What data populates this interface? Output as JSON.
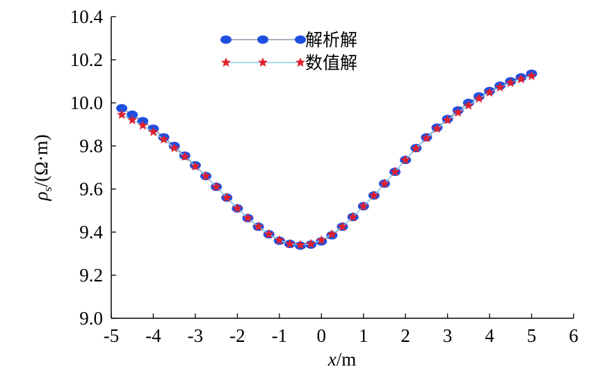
{
  "chart_data": {
    "type": "line",
    "title": "",
    "xlabel": "x/m",
    "ylabel": "ρs/(Ω·m)",
    "xlim": [
      -5,
      6
    ],
    "ylim": [
      9.0,
      10.4
    ],
    "x_ticks": [
      -5,
      -4,
      -3,
      -2,
      -1,
      0,
      1,
      2,
      3,
      4,
      5,
      6
    ],
    "x_tick_labels": [
      "-5",
      "-4",
      "-3",
      "-2",
      "-1",
      "0",
      "1",
      "2",
      "3",
      "4",
      "5",
      "6"
    ],
    "y_ticks": [
      9.0,
      9.2,
      9.4,
      9.6,
      9.8,
      10.0,
      10.2,
      10.4
    ],
    "y_tick_labels": [
      "9.0",
      "9.2",
      "9.4",
      "9.6",
      "9.8",
      "10.0",
      "10.2",
      "10.4"
    ],
    "grid": false,
    "legend_position": "top-center",
    "x": [
      -4.75,
      -4.5,
      -4.25,
      -4.0,
      -3.75,
      -3.5,
      -3.25,
      -3.0,
      -2.75,
      -2.5,
      -2.25,
      -2.0,
      -1.75,
      -1.5,
      -1.25,
      -1.0,
      -0.75,
      -0.5,
      -0.25,
      0.0,
      0.25,
      0.5,
      0.75,
      1.0,
      1.25,
      1.5,
      1.75,
      2.0,
      2.25,
      2.5,
      2.75,
      3.0,
      3.25,
      3.5,
      3.75,
      4.0,
      4.25,
      4.5,
      4.75,
      5.0
    ],
    "series": [
      {
        "name": "解析解",
        "marker": "circle",
        "color": "#1f4fe0",
        "line_color": "#8a9aa8",
        "values": [
          9.975,
          9.945,
          9.915,
          9.88,
          9.84,
          9.8,
          9.755,
          9.71,
          9.66,
          9.61,
          9.56,
          9.51,
          9.465,
          9.425,
          9.39,
          9.36,
          9.345,
          9.337,
          9.342,
          9.357,
          9.385,
          9.425,
          9.47,
          9.52,
          9.57,
          9.625,
          9.68,
          9.735,
          9.79,
          9.84,
          9.885,
          9.925,
          9.965,
          10.0,
          10.03,
          10.055,
          10.08,
          10.1,
          10.118,
          10.135
        ]
      },
      {
        "name": "数值解",
        "marker": "star",
        "color": "#e0202e",
        "line_color": "#8ec8e8",
        "values": [
          9.945,
          9.92,
          9.895,
          9.865,
          9.83,
          9.79,
          9.75,
          9.705,
          9.66,
          9.61,
          9.56,
          9.51,
          9.465,
          9.425,
          9.39,
          9.362,
          9.345,
          9.34,
          9.345,
          9.362,
          9.39,
          9.425,
          9.47,
          9.52,
          9.57,
          9.625,
          9.68,
          9.735,
          9.788,
          9.836,
          9.88,
          9.92,
          9.955,
          9.988,
          10.02,
          10.048,
          10.072,
          10.093,
          10.11,
          10.125
        ]
      }
    ]
  }
}
